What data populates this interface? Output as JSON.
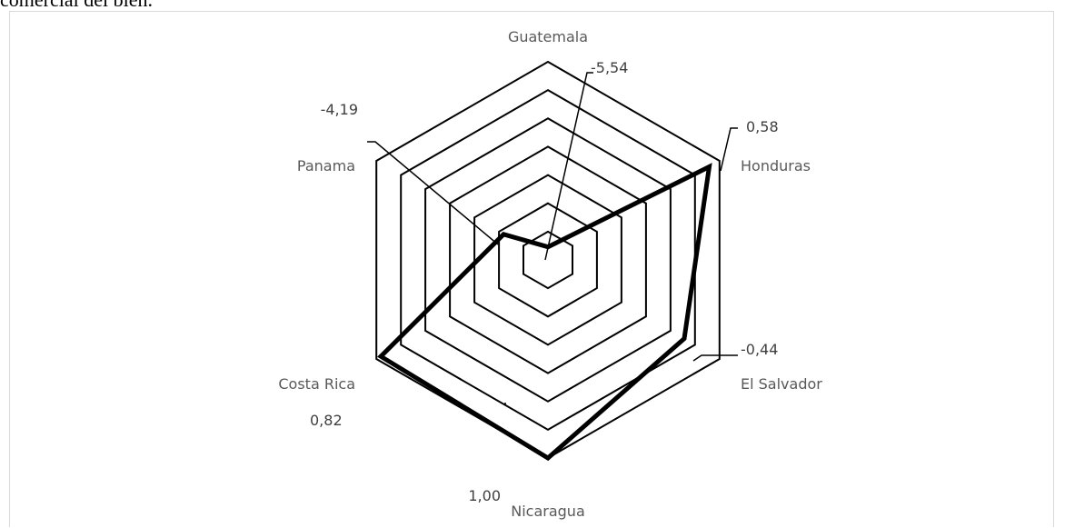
{
  "page": {
    "top_text": "comercial del bien."
  },
  "chart_data": {
    "type": "radar",
    "title": "",
    "categories": [
      "Guatemala",
      "Honduras",
      "El Salvador",
      "Nicaragua",
      "Costa Rica",
      "Panama"
    ],
    "series": [
      {
        "values": [
          -5.54,
          0.58,
          -0.44,
          1.0,
          0.82,
          -4.19
        ]
      }
    ],
    "data_labels": [
      "-5,54",
      "0,58",
      "-0,44",
      "1,00",
      "0,82",
      "-4,19"
    ],
    "range": [
      -6,
      1
    ],
    "rings": 7,
    "axis_tick_labels_visible": false,
    "legend": "none",
    "colors": {
      "series": "#000000",
      "grid": "#000000",
      "category_text": "#595959",
      "value_text": "#404040"
    }
  }
}
